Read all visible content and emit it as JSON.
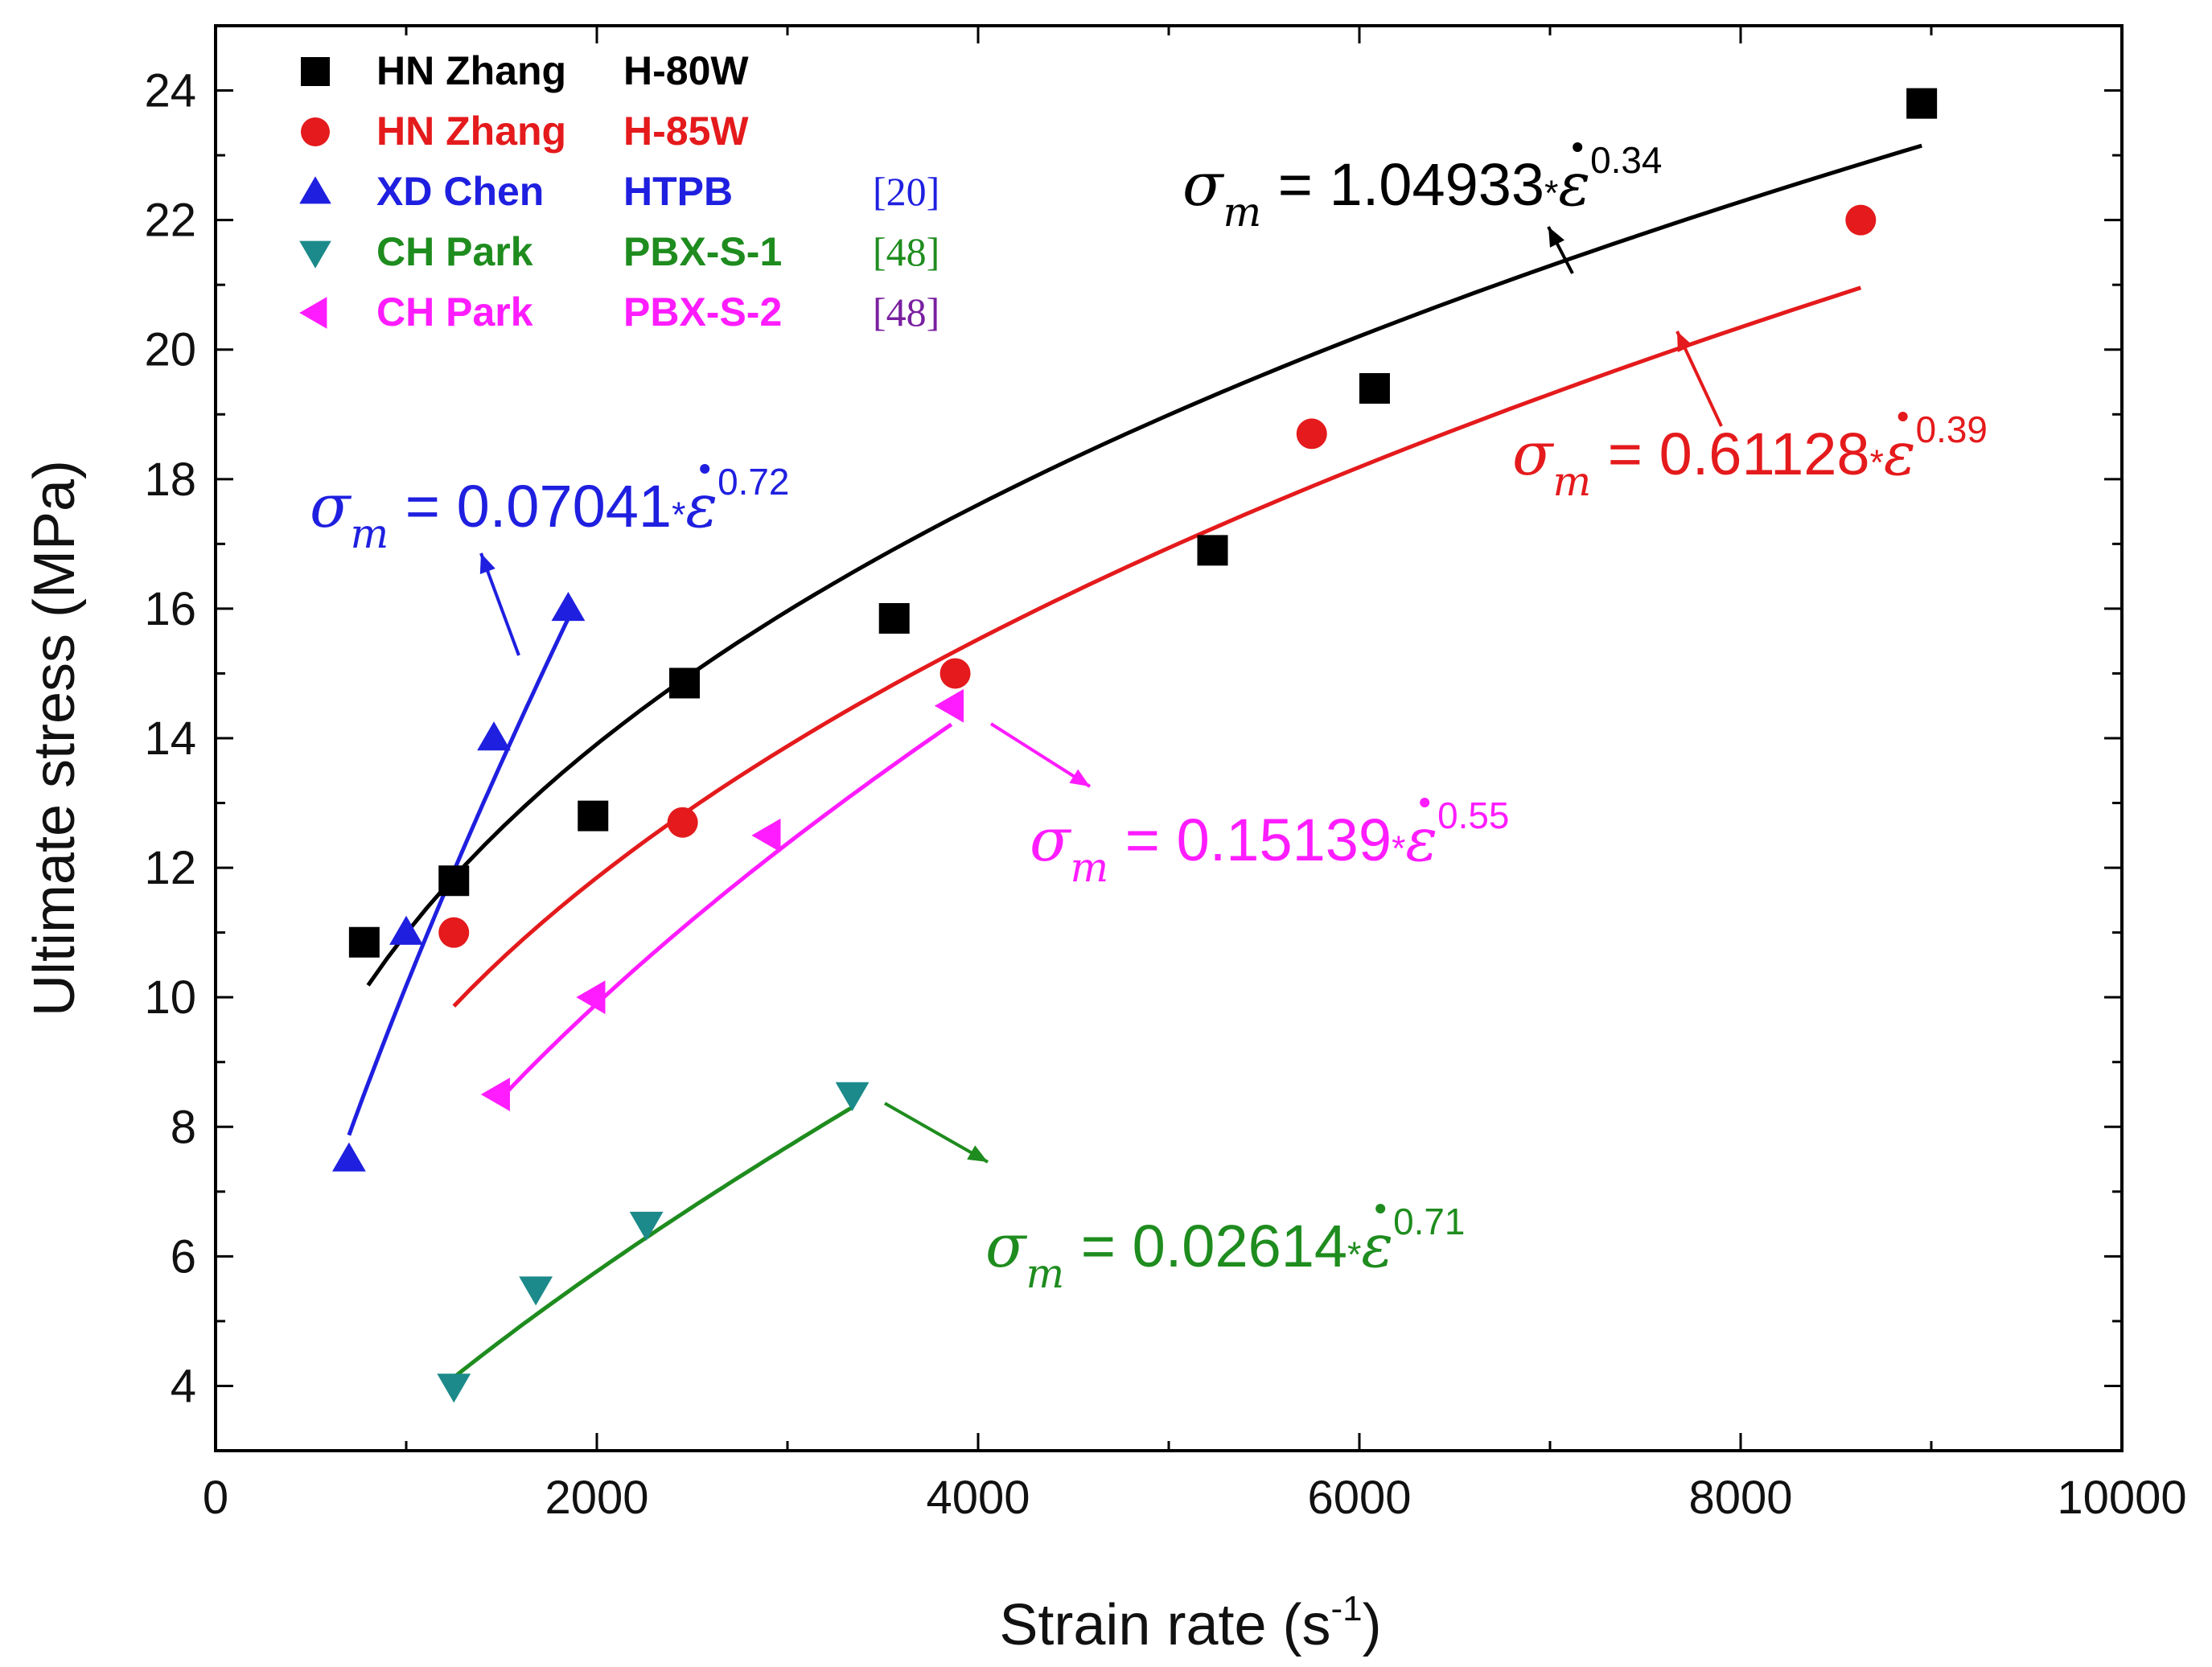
{
  "chart_data": {
    "type": "scatter",
    "xlabel": "Strain rate (s",
    "xlabel_sup": "-1",
    "xlabel_end": ")",
    "ylabel": "Ultimate stress (MPa)",
    "xlim": [
      0,
      10000
    ],
    "ylim": [
      3,
      25
    ],
    "x_ticks": [
      0,
      2000,
      4000,
      6000,
      8000,
      10000
    ],
    "y_ticks": [
      4,
      6,
      8,
      10,
      12,
      14,
      16,
      18,
      20,
      22,
      24
    ],
    "legend_position": "top-left",
    "series": [
      {
        "name": "HN Zhang",
        "material": "H-80W",
        "ref": "",
        "marker": "square",
        "color": "#000000",
        "points": [
          [
            780,
            10.85
          ],
          [
            1250,
            11.8
          ],
          [
            1980,
            12.8
          ],
          [
            2460,
            14.85
          ],
          [
            3560,
            15.85
          ],
          [
            5230,
            16.9
          ],
          [
            6080,
            19.4
          ],
          [
            8950,
            23.8
          ]
        ],
        "fit": {
          "coef": 1.04933,
          "exp": 0.34,
          "x_range": [
            800,
            8950
          ],
          "color": "#000000"
        },
        "equation": {
          "sigma": "σ",
          "sub": "m",
          "eq": " = ",
          "coef": "1.04933",
          "mul": "*",
          "eps": "ε",
          "exp": "0.34",
          "color": "#000000"
        }
      },
      {
        "name": "HN Zhang",
        "material": "H-85W",
        "ref": "",
        "marker": "circle",
        "color": "#e41a1c",
        "points": [
          [
            1250,
            11.0
          ],
          [
            2450,
            12.7
          ],
          [
            3880,
            15.0
          ],
          [
            5750,
            18.7
          ],
          [
            8630,
            22.0
          ]
        ],
        "fit": {
          "coef": 0.61128,
          "exp": 0.39,
          "x_range": [
            1250,
            8630
          ],
          "color": "#e41a1c"
        },
        "equation": {
          "sigma": "σ",
          "sub": "m",
          "eq": " = ",
          "coef": "0.61128",
          "mul": "*",
          "eps": "ε",
          "exp": "0.39",
          "color": "#e41a1c"
        }
      },
      {
        "name": "XD Chen",
        "material": "HTPB",
        "ref": "[20]",
        "marker": "triangle-up",
        "color": "#1f1fe0",
        "points": [
          [
            700,
            7.5
          ],
          [
            1000,
            11.0
          ],
          [
            1460,
            14.0
          ],
          [
            1850,
            16.0
          ]
        ],
        "fit": {
          "coef": 0.07041,
          "exp": 0.72,
          "x_range": [
            700,
            1850
          ],
          "color": "#1f1fe0"
        },
        "equation": {
          "sigma": "σ",
          "sub": "m",
          "eq": " = ",
          "coef": "0.07041",
          "mul": "*",
          "eps": "ε",
          "exp": "0.72",
          "color": "#1f1fe0"
        }
      },
      {
        "name": "CH Park",
        "material": "PBX-S-1",
        "ref": "[48]",
        "marker": "triangle-down",
        "color": "#1c8a8a",
        "points": [
          [
            1250,
            4.0
          ],
          [
            1680,
            5.5
          ],
          [
            2260,
            6.5
          ],
          [
            3340,
            8.5
          ]
        ],
        "fit": {
          "coef": 0.02614,
          "exp": 0.71,
          "x_range": [
            1250,
            3340
          ],
          "color": "#1e8c1e"
        },
        "equation": {
          "sigma": "σ",
          "sub": "m",
          "eq": " = ",
          "coef": "0.02614",
          "mul": "*",
          "eps": "ε",
          "exp": "0.71",
          "color": "#1e8c1e"
        }
      },
      {
        "name": "CH Park",
        "material": "PBX-S-2",
        "ref": "[48]",
        "marker": "triangle-left",
        "color": "#ff1cff",
        "points": [
          [
            1480,
            8.5
          ],
          [
            1980,
            10.0
          ],
          [
            2900,
            12.5
          ],
          [
            3860,
            14.5
          ]
        ],
        "fit": {
          "coef": 0.15139,
          "exp": 0.55,
          "x_range": [
            1480,
            3860
          ],
          "color": "#ff1cff"
        },
        "equation": {
          "sigma": "σ",
          "sub": "m",
          "eq": " = ",
          "coef": "0.15139",
          "mul": "*",
          "eps": "ε",
          "exp": "0.55",
          "color": "#ff1cff"
        }
      }
    ],
    "legend": {
      "name_colors": [
        "#000000",
        "#e41a1c",
        "#1f1fe0",
        "#1e8c1e",
        "#ff1cff"
      ],
      "ref_colors": [
        "#000000",
        "#e41a1c",
        "#1f1fe0",
        "#1e8c1e",
        "#7a1fa0"
      ]
    }
  }
}
